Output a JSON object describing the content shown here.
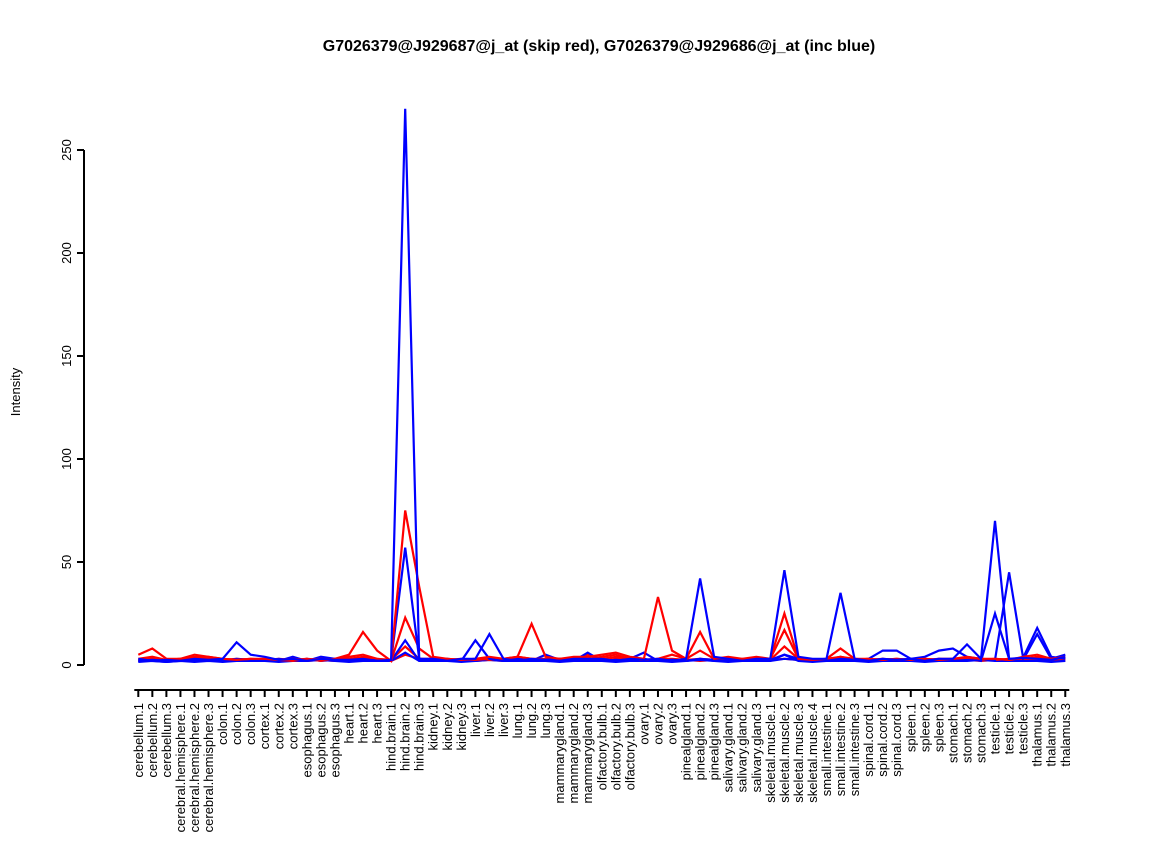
{
  "figure": {
    "background": "#FFFFFF"
  },
  "chart_data": {
    "type": "line",
    "title": "G7026379@J929687@j_at (skip red), G7026379@J929686@j_at (inc blue)",
    "xlabel": "",
    "ylabel": "Intensity",
    "ylim": [
      0,
      272
    ],
    "yticks": [
      0,
      50,
      100,
      150,
      200,
      250
    ],
    "grid": false,
    "legend_position": "none",
    "colors": {
      "skip_probe": "#FF0000",
      "inc_probe": "#0000FF"
    },
    "categories": [
      "cerebellum.1",
      "cerebellum.2",
      "cerebellum.3",
      "cerebral.hemisphere.1",
      "cerebral.hemisphere.2",
      "cerebral.hemisphere.3",
      "colon.1",
      "colon.2",
      "colon.3",
      "cortex.1",
      "cortex.2",
      "cortex.3",
      "esophagus.1",
      "esophagus.2",
      "esophagus.3",
      "heart.1",
      "heart.2",
      "heart.3",
      "hind.brain.1",
      "hind.brain.2",
      "hind.brain.3",
      "kidney.1",
      "kidney.2",
      "kidney.3",
      "liver.1",
      "liver.2",
      "liver.3",
      "lung.1",
      "lung.2",
      "lung.3",
      "mammarygland.1",
      "mammarygland.2",
      "mammarygland.3",
      "olfactory.bulb.1",
      "olfactory.bulb.2",
      "olfactory.bulb.3",
      "ovary.1",
      "ovary.2",
      "ovary.3",
      "pinealgland.1",
      "pinealgland.2",
      "pinealgland.3",
      "salivary.gland.1",
      "salivary.gland.2",
      "salivary.gland.3",
      "skeletal.muscle.1",
      "skeletal.muscle.2",
      "skeletal.muscle.3",
      "skeletal.muscle.4",
      "small.intestine.1",
      "small.intestine.2",
      "small.intestine.3",
      "spinal.cord.1",
      "spinal.cord.2",
      "spinal.cord.3",
      "spleen.1",
      "spleen.2",
      "spleen.3",
      "stomach.1",
      "stomach.2",
      "stomach.3",
      "testicle.1",
      "testicle.2",
      "testicle.3",
      "thalamus.1",
      "thalamus.2",
      "thalamus.3"
    ],
    "series": [
      {
        "name": "red-4",
        "group": "skip",
        "color": "#FF0000",
        "values": [
          2,
          2.5,
          2,
          2.5,
          3,
          2.5,
          2,
          2.5,
          2,
          2.5,
          2,
          2.5,
          2,
          2.5,
          2,
          2.5,
          3,
          2.5,
          2,
          5,
          3,
          2.5,
          2,
          2.5,
          2,
          2.5,
          2,
          2.5,
          2,
          2,
          2,
          2.5,
          2.5,
          2,
          3,
          2.5,
          2,
          2.5,
          2,
          2.5,
          2,
          2.5,
          2,
          2.5,
          2,
          2.5,
          3,
          2.5,
          2,
          2.5,
          2,
          2.5,
          2,
          2.5,
          2,
          2.5,
          2,
          2.5,
          2,
          2.5,
          2,
          2.5,
          2,
          2.5,
          2,
          2.5,
          2
        ]
      },
      {
        "name": "blue-4",
        "group": "inc",
        "color": "#0000FF",
        "values": [
          1.5,
          2,
          1.5,
          2,
          1.5,
          2,
          1.5,
          2,
          2,
          2,
          1.5,
          2,
          2,
          2.5,
          2,
          1.5,
          2,
          2,
          2,
          6,
          2,
          2,
          2,
          1.5,
          2,
          2.5,
          2,
          2,
          2,
          2,
          1.5,
          2,
          2,
          2,
          1.5,
          2,
          2,
          2,
          1.5,
          2,
          2.5,
          2,
          1.5,
          2,
          2,
          2,
          5,
          2,
          1.5,
          2,
          2,
          2,
          1.5,
          2,
          2,
          2,
          1.5,
          2,
          2,
          2,
          2.5,
          2,
          2,
          2,
          2,
          1.5,
          2
        ]
      },
      {
        "name": "red-3",
        "group": "skip",
        "color": "#FF0000",
        "values": [
          2.5,
          3,
          2.5,
          3,
          5,
          4,
          3,
          2.5,
          3,
          2.5,
          3,
          2.5,
          3,
          2.5,
          3,
          3,
          4,
          3,
          2.5,
          9,
          3,
          3,
          3,
          2.5,
          3,
          2.5,
          3,
          4,
          3,
          2.5,
          3,
          2.5,
          5,
          3,
          4,
          3,
          2.5,
          3,
          3,
          2.5,
          3,
          2.5,
          3,
          2.5,
          3,
          2.5,
          9,
          3,
          2,
          2.5,
          4,
          2.5,
          3,
          2.5,
          3,
          2.5,
          3,
          2.5,
          3,
          3,
          2.5,
          3,
          2.5,
          3,
          3,
          3.5,
          3
        ]
      },
      {
        "name": "blue-3",
        "group": "inc",
        "color": "#0000FF",
        "values": [
          2,
          2,
          1.5,
          2,
          2.5,
          2,
          2.5,
          2,
          2,
          2,
          2,
          4,
          2,
          4,
          3,
          2,
          2,
          2.5,
          2,
          12,
          2,
          2,
          2.5,
          2,
          2,
          3,
          2.5,
          2,
          2,
          5,
          2.5,
          2,
          6,
          2,
          2,
          3,
          6,
          2,
          2.5,
          2,
          3,
          2,
          2.5,
          2,
          2,
          2,
          3,
          2.5,
          2,
          2,
          2.5,
          2,
          2,
          3,
          2,
          2,
          2,
          3,
          2.5,
          3,
          2,
          25,
          3,
          2.5,
          15,
          3,
          5
        ]
      },
      {
        "name": "red-2",
        "group": "skip",
        "color": "#FF0000",
        "values": [
          3,
          4,
          2.5,
          3,
          3.5,
          3,
          2.5,
          3,
          2.5,
          3,
          2.5,
          3,
          2.5,
          3,
          2.5,
          4,
          5,
          3,
          2,
          23,
          8,
          3,
          2.5,
          3,
          2.5,
          3,
          2.5,
          4,
          3,
          3,
          3,
          3.5,
          3,
          4,
          5,
          3,
          2.5,
          3,
          5,
          3,
          7,
          3,
          3,
          2.5,
          3,
          3,
          17,
          3,
          2.5,
          3,
          4,
          3,
          2.5,
          3,
          2.5,
          3,
          2.5,
          3,
          3,
          3.5,
          3,
          2.5,
          3,
          3,
          4,
          3,
          3
        ]
      },
      {
        "name": "blue-2",
        "group": "inc",
        "color": "#0000FF",
        "values": [
          2,
          2.5,
          2,
          2.5,
          2,
          2,
          2,
          3,
          2.5,
          2,
          3,
          2,
          3,
          2,
          2.5,
          2,
          2.5,
          2,
          2,
          57,
          3,
          2.5,
          3,
          2,
          12,
          3,
          2,
          3,
          2,
          2.5,
          3,
          2,
          2,
          2,
          2.5,
          2,
          3,
          2,
          2.5,
          2,
          3,
          2.5,
          2,
          3,
          2,
          2.5,
          5,
          3,
          2,
          2,
          3,
          2.5,
          3,
          7,
          7,
          3,
          4,
          7,
          8,
          4,
          3,
          2.5,
          45,
          3.5,
          18,
          4,
          3
        ]
      },
      {
        "name": "red-1",
        "group": "skip",
        "color": "#FF0000",
        "values": [
          5,
          8,
          3,
          3,
          4,
          4,
          3,
          2.5,
          3,
          3,
          2.5,
          2,
          3,
          2,
          3,
          5,
          16,
          7,
          2,
          75,
          38,
          4,
          3,
          2.5,
          3,
          4,
          3,
          4,
          20,
          4,
          3,
          4,
          4,
          5,
          6,
          4,
          3,
          33,
          7,
          3,
          16,
          3,
          4,
          3,
          4,
          3,
          25,
          3,
          2.5,
          3,
          8,
          3,
          3,
          2.5,
          3,
          2.5,
          3,
          2.5,
          3,
          4,
          3,
          3,
          2.5,
          4,
          5,
          3,
          4
        ]
      },
      {
        "name": "blue-1",
        "group": "inc",
        "color": "#0000FF",
        "values": [
          3,
          2,
          2.5,
          2,
          3,
          2.5,
          3,
          11,
          5,
          4,
          2.5,
          3,
          2,
          3,
          2.5,
          2.5,
          3,
          2,
          2.5,
          270,
          3,
          3,
          2,
          3,
          3,
          15,
          3,
          2,
          3,
          2.5,
          2,
          3,
          3,
          3,
          2,
          3,
          2.5,
          3,
          2,
          3,
          42,
          4,
          3,
          2,
          3,
          3,
          46,
          4,
          3,
          3,
          35,
          3,
          2,
          3,
          2.5,
          3,
          2,
          3,
          3,
          10,
          3,
          70,
          3,
          3.5,
          3,
          2.5,
          4
        ]
      }
    ]
  }
}
